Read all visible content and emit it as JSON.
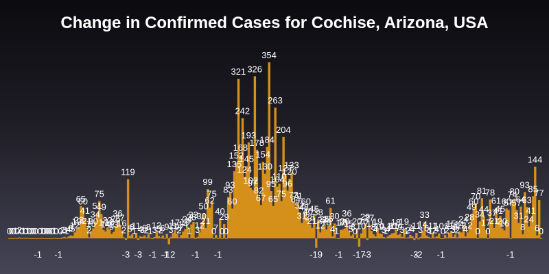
{
  "chart_data": {
    "type": "bar",
    "title": "Change in Confirmed Cases for Cochise, Arizona, USA",
    "xlabel": "",
    "ylabel": "",
    "ylim": [
      -40,
      354
    ],
    "grid": false,
    "legend": "none",
    "values": [
      0,
      0,
      0,
      1,
      0,
      2,
      0,
      1,
      0,
      1,
      0,
      0,
      0,
      0,
      -1,
      0,
      1,
      0,
      0,
      0,
      0,
      0,
      1,
      0,
      -1,
      0,
      2,
      3,
      1,
      4,
      6,
      5,
      12,
      19,
      23,
      65,
      60,
      41,
      21,
      2,
      15,
      20,
      34,
      51,
      75,
      49,
      17,
      14,
      22,
      18,
      9,
      13,
      25,
      36,
      27,
      16,
      2,
      -3,
      119,
      5,
      8,
      1,
      11,
      -3,
      4,
      3,
      6,
      2,
      8,
      1,
      -1,
      3,
      12,
      5,
      2,
      6,
      -1,
      9,
      -12,
      3,
      11,
      17,
      9,
      2,
      7,
      14,
      19,
      24,
      1,
      28,
      33,
      -1,
      3,
      12,
      30,
      50,
      21,
      99,
      62,
      75,
      0,
      7,
      -1,
      40,
      0,
      29,
      0,
      83,
      93,
      60,
      135,
      152,
      321,
      168,
      242,
      124,
      145,
      193,
      102,
      97,
      326,
      178,
      82,
      67,
      154,
      130,
      184,
      354,
      95,
      65,
      263,
      104,
      110,
      75,
      204,
      127,
      96,
      120,
      133,
      73,
      64,
      71,
      52,
      31,
      48,
      60,
      40,
      28,
      21,
      45,
      -19,
      38,
      12,
      23,
      25,
      18,
      25,
      61,
      4,
      30,
      1,
      -1,
      17,
      18,
      20,
      36,
      15,
      5,
      8,
      0,
      20,
      -17,
      10,
      20,
      29,
      -3,
      27,
      15,
      8,
      4,
      19,
      10,
      9,
      3,
      1,
      4,
      7,
      10,
      11,
      18,
      7,
      9,
      3,
      19,
      1,
      2,
      7,
      4,
      -3,
      11,
      -2,
      3,
      14,
      33,
      6,
      3,
      1,
      11,
      2,
      4,
      10,
      -1,
      0,
      7,
      2,
      11,
      15,
      3,
      8,
      2,
      14,
      12,
      24,
      4,
      12,
      28,
      49,
      60,
      70,
      0,
      34,
      81,
      44,
      17,
      0,
      78,
      37,
      21,
      61,
      41,
      45,
      20,
      16,
      60,
      57,
      -1,
      74,
      80,
      57,
      31,
      64,
      8,
      93,
      63,
      24,
      41,
      85,
      144,
      6,
      77,
      0
    ]
  }
}
